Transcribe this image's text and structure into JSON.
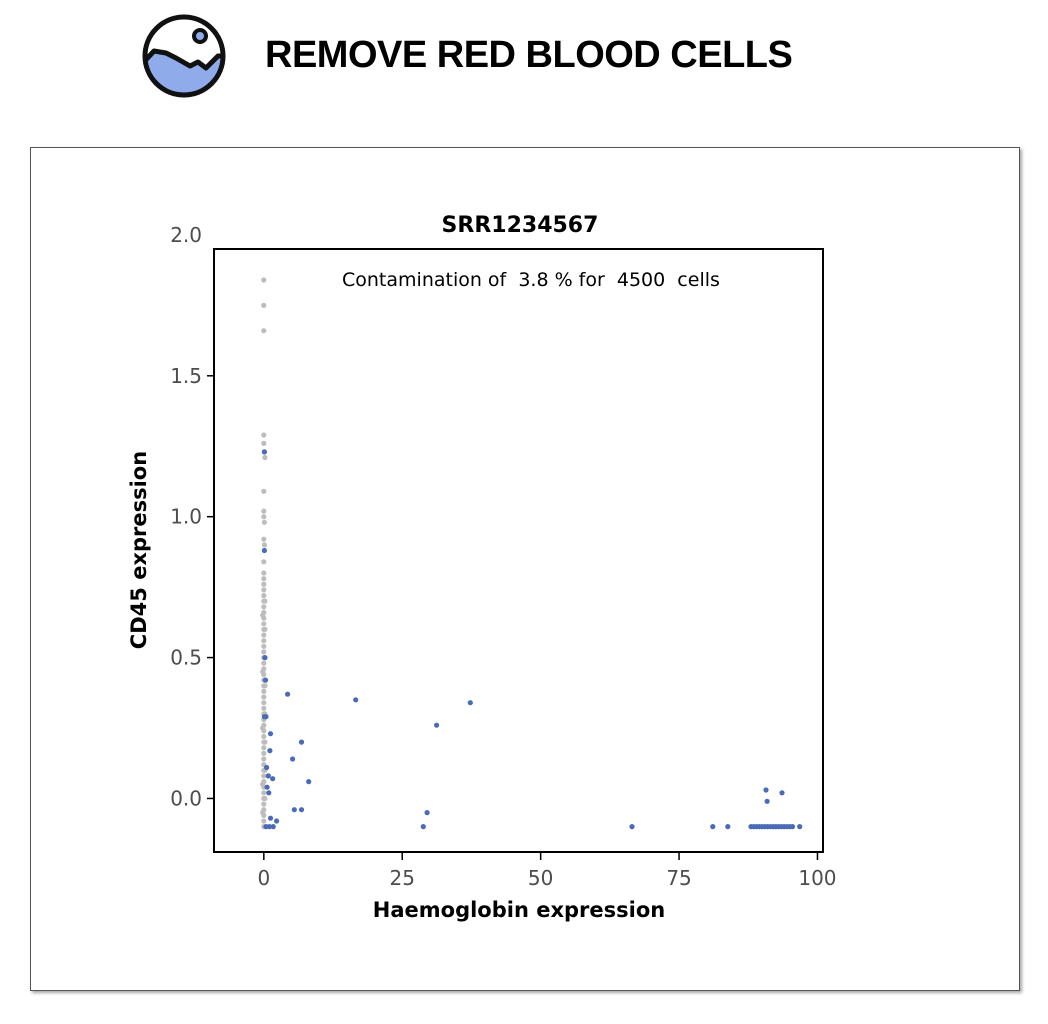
{
  "header": {
    "title": "REMOVE RED BLOOD CELLS",
    "icon": "landscape-image-icon"
  },
  "colors": {
    "contaminated": "#4a6bb5",
    "clean": "#bdbdbd",
    "icon_fill": "#8fabea"
  },
  "chart_data": {
    "type": "scatter",
    "title": "SRR1234567",
    "xlabel": "Haemoglobin expression",
    "ylabel": "CD45 expression",
    "annotation": "Contamination of  3.8 % for  4500  cells",
    "xlim": [
      -9,
      101
    ],
    "ylim": [
      -0.19,
      1.95
    ],
    "xticks": [
      0,
      25,
      50,
      75,
      100
    ],
    "xtick_labels": [
      "0",
      "25",
      "50",
      "75",
      "100"
    ],
    "yticks": [
      0.0,
      0.5,
      1.0,
      1.5,
      2.0
    ],
    "ytick_labels": [
      "0.0",
      "0.5",
      "1.0",
      "1.5",
      "2.0"
    ],
    "grid": false,
    "series": [
      {
        "points": [
          [
            0.0,
            1.84
          ],
          [
            0.0,
            1.75
          ],
          [
            0.0,
            1.66
          ],
          [
            0.0,
            1.29
          ],
          [
            0.0,
            1.26
          ],
          [
            0.1,
            1.23
          ],
          [
            0.2,
            1.21
          ],
          [
            0.0,
            1.09
          ],
          [
            0.0,
            1.02
          ],
          [
            0.0,
            1.0
          ],
          [
            0.1,
            0.98
          ],
          [
            0.0,
            0.92
          ],
          [
            0.1,
            0.9
          ],
          [
            0.0,
            0.84
          ],
          [
            0.0,
            0.8
          ],
          [
            0.0,
            0.78
          ],
          [
            0.0,
            0.76
          ],
          [
            0.0,
            0.74
          ],
          [
            0.0,
            0.72
          ],
          [
            0.0,
            0.7
          ],
          [
            0.0,
            0.68
          ],
          [
            0.0,
            0.66
          ],
          [
            0.0,
            0.64
          ],
          [
            0.0,
            0.62
          ],
          [
            0.0,
            0.6
          ],
          [
            0.0,
            0.58
          ],
          [
            0.0,
            0.56
          ],
          [
            0.0,
            0.54
          ],
          [
            0.0,
            0.52
          ],
          [
            0.0,
            0.5
          ],
          [
            0.0,
            0.48
          ],
          [
            0.0,
            0.46
          ],
          [
            0.0,
            0.44
          ],
          [
            0.0,
            0.42
          ],
          [
            0.0,
            0.4
          ],
          [
            0.0,
            0.38
          ],
          [
            0.0,
            0.36
          ],
          [
            0.0,
            0.34
          ],
          [
            0.0,
            0.32
          ],
          [
            0.0,
            0.3
          ],
          [
            0.0,
            0.28
          ],
          [
            0.0,
            0.26
          ],
          [
            0.0,
            0.24
          ],
          [
            0.0,
            0.22
          ],
          [
            0.0,
            0.2
          ],
          [
            0.0,
            0.18
          ],
          [
            0.0,
            0.16
          ],
          [
            0.0,
            0.14
          ],
          [
            0.0,
            0.12
          ],
          [
            0.0,
            0.1
          ],
          [
            0.0,
            0.08
          ],
          [
            0.0,
            0.06
          ],
          [
            0.0,
            0.04
          ],
          [
            0.0,
            0.02
          ],
          [
            0.0,
            0.0
          ],
          [
            0.0,
            -0.02
          ],
          [
            0.0,
            -0.04
          ],
          [
            0.0,
            -0.06
          ],
          [
            0.0,
            -0.08
          ],
          [
            0.0,
            -0.1
          ],
          [
            0.2,
            0.7
          ],
          [
            0.2,
            0.6
          ],
          [
            0.2,
            0.5
          ],
          [
            0.2,
            0.4
          ],
          [
            0.2,
            0.3
          ],
          [
            0.2,
            0.2
          ],
          [
            0.2,
            0.1
          ],
          [
            0.2,
            0.0
          ],
          [
            -0.2,
            0.65
          ],
          [
            -0.2,
            0.45
          ],
          [
            -0.2,
            0.25
          ],
          [
            -0.2,
            0.05
          ],
          [
            -0.2,
            -0.05
          ]
        ]
      },
      {
        "points": [
          [
            0.1,
            1.23
          ],
          [
            0.1,
            0.88
          ],
          [
            0.2,
            0.5
          ],
          [
            0.3,
            0.42
          ],
          [
            0.1,
            0.29
          ],
          [
            0.4,
            0.29
          ],
          [
            1.2,
            0.23
          ],
          [
            1.1,
            0.17
          ],
          [
            0.5,
            0.11
          ],
          [
            0.8,
            0.08
          ],
          [
            1.6,
            0.07
          ],
          [
            0.9,
            0.02
          ],
          [
            0.6,
            0.04
          ],
          [
            4.3,
            0.37
          ],
          [
            16.6,
            0.35
          ],
          [
            6.8,
            0.2
          ],
          [
            31.2,
            0.26
          ],
          [
            37.3,
            0.34
          ],
          [
            5.2,
            0.14
          ],
          [
            8.1,
            0.06
          ],
          [
            5.5,
            -0.04
          ],
          [
            6.8,
            -0.04
          ],
          [
            1.2,
            -0.07
          ],
          [
            2.3,
            -0.08
          ],
          [
            0.4,
            -0.1
          ],
          [
            1.0,
            -0.1
          ],
          [
            1.7,
            -0.1
          ],
          [
            29.5,
            -0.05
          ],
          [
            28.8,
            -0.1
          ],
          [
            66.5,
            -0.1
          ],
          [
            81.1,
            -0.1
          ],
          [
            83.8,
            -0.1
          ],
          [
            88.0,
            -0.1
          ],
          [
            88.5,
            -0.1
          ],
          [
            89.0,
            -0.1
          ],
          [
            89.5,
            -0.1
          ],
          [
            90.0,
            -0.1
          ],
          [
            90.5,
            -0.1
          ],
          [
            91.0,
            -0.1
          ],
          [
            91.5,
            -0.1
          ],
          [
            92.0,
            -0.1
          ],
          [
            92.5,
            -0.1
          ],
          [
            93.0,
            -0.1
          ],
          [
            93.5,
            -0.1
          ],
          [
            94.0,
            -0.1
          ],
          [
            94.5,
            -0.1
          ],
          [
            95.0,
            -0.1
          ],
          [
            95.5,
            -0.1
          ],
          [
            96.8,
            -0.1
          ],
          [
            90.7,
            0.03
          ],
          [
            93.6,
            0.02
          ],
          [
            90.9,
            -0.01
          ]
        ]
      }
    ]
  }
}
